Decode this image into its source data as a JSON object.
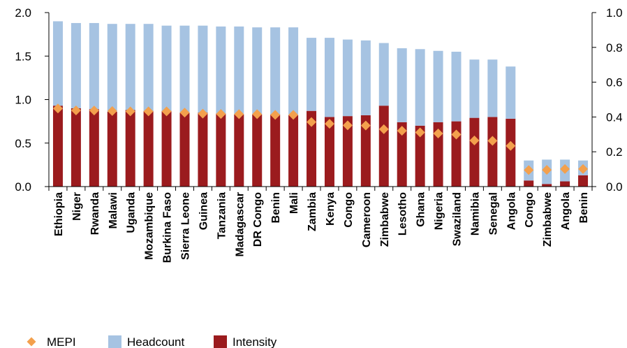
{
  "chart_data": {
    "type": "bar",
    "categories": [
      "Ethiopia",
      "Niger",
      "Rwanda",
      "Malawi",
      "Uganda",
      "Mozambique",
      "Burkina Faso",
      "Sierra Leone",
      "Guinea",
      "Tanzania",
      "Madagascar",
      "DR Congo",
      "Benin",
      "Mali",
      "Zambia",
      "Kenya",
      "Congo",
      "Cameroon",
      "Zimbabwe",
      "Lesotho",
      "Ghana",
      "Nigeria",
      "Swaziland",
      "Namibia",
      "Senegal",
      "Angola",
      "Congo",
      "Zimbabwe",
      "Angola",
      "Benin"
    ],
    "series": [
      {
        "name": "Headcount",
        "axis": "left",
        "stacked": true,
        "values": [
          0.97,
          0.98,
          0.99,
          1.01,
          0.99,
          1.0,
          0.98,
          1.0,
          1.0,
          1.0,
          1.01,
          1.0,
          1.0,
          1.01,
          0.84,
          0.91,
          0.88,
          0.86,
          0.72,
          0.85,
          0.88,
          0.82,
          0.8,
          0.67,
          0.66,
          0.6,
          0.23,
          0.28,
          0.25,
          0.17
        ],
        "color": "#a6c3e2"
      },
      {
        "name": "Intensity",
        "axis": "left",
        "stacked": true,
        "values": [
          0.93,
          0.9,
          0.89,
          0.86,
          0.88,
          0.87,
          0.87,
          0.85,
          0.85,
          0.84,
          0.83,
          0.83,
          0.83,
          0.82,
          0.87,
          0.8,
          0.81,
          0.82,
          0.93,
          0.74,
          0.7,
          0.74,
          0.75,
          0.79,
          0.8,
          0.78,
          0.07,
          0.03,
          0.06,
          0.13
        ],
        "color": "#9b1b1e"
      },
      {
        "name": "MEPI",
        "axis": "right",
        "type": "scatter",
        "values": [
          0.449,
          0.438,
          0.437,
          0.434,
          0.432,
          0.432,
          0.432,
          0.425,
          0.419,
          0.417,
          0.416,
          0.416,
          0.412,
          0.412,
          0.371,
          0.361,
          0.352,
          0.351,
          0.33,
          0.321,
          0.311,
          0.305,
          0.299,
          0.265,
          0.263,
          0.234,
          0.095,
          0.096,
          0.101,
          0.101
        ],
        "color": "#f3a04d"
      }
    ],
    "y_left": {
      "ylim": [
        0,
        2.0
      ],
      "ticks": [
        "0.0",
        "0.5",
        "1.0",
        "1.5",
        "2.0"
      ]
    },
    "y_right": {
      "ylim": [
        0,
        1.0
      ],
      "ticks": [
        "0.0",
        "0.2",
        "0.4",
        "0.6",
        "0.8",
        "1.0"
      ]
    },
    "grid": false,
    "legend": {
      "placement": "bottom-left",
      "entries": [
        "MEPI",
        "Headcount",
        "Intensity"
      ]
    }
  }
}
